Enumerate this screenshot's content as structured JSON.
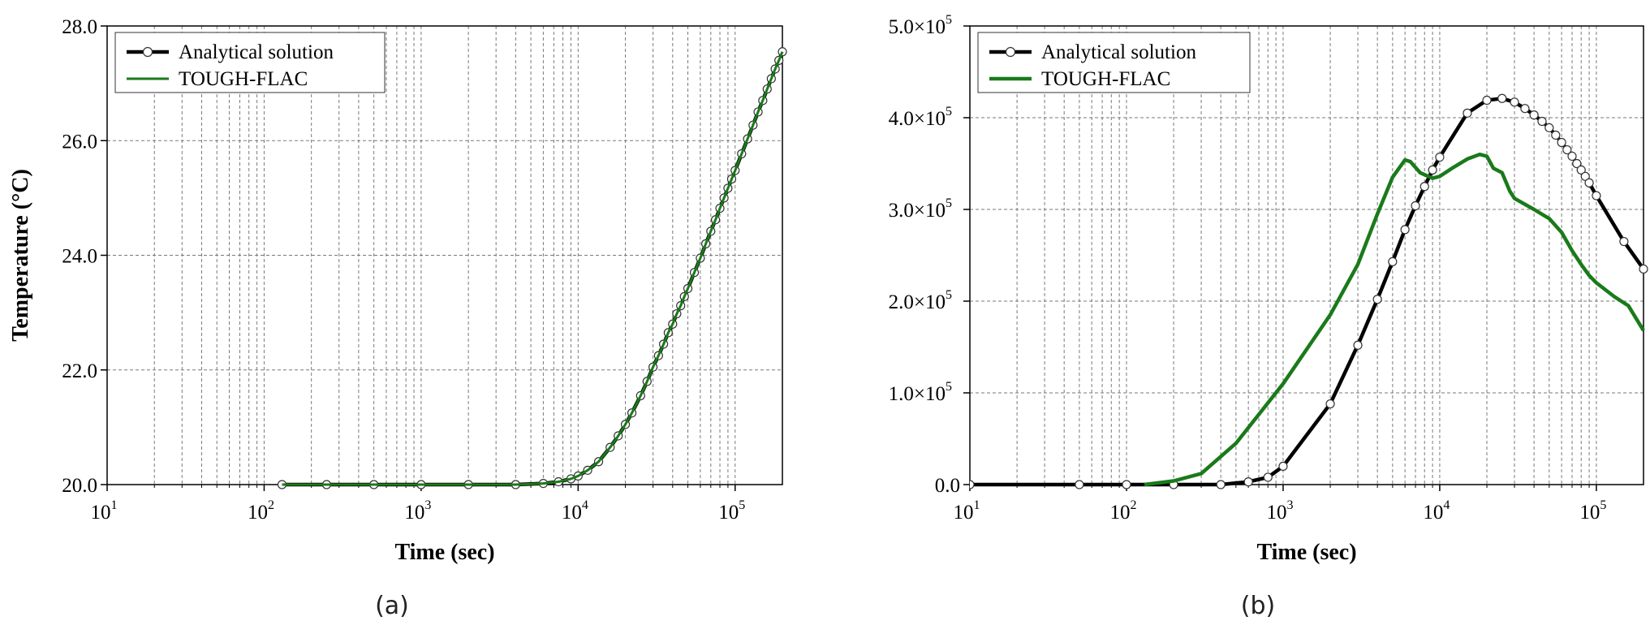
{
  "colors": {
    "analytical": "#000000",
    "tough_flac": "#1a7a1a",
    "grid": "#7a7a7a"
  },
  "chart_data": [
    {
      "type": "line",
      "panel_label": "(a)",
      "xlabel": "Time (sec)",
      "ylabel": "Temperature (°C)",
      "x_scale": "log",
      "xlim": [
        10,
        200000
      ],
      "ylim": [
        20.0,
        28.0
      ],
      "x_ticks": [
        10,
        100,
        1000,
        10000,
        100000
      ],
      "x_tick_labels": [
        {
          "base": "10",
          "exp": "1"
        },
        {
          "base": "10",
          "exp": "2"
        },
        {
          "base": "10",
          "exp": "3"
        },
        {
          "base": "10",
          "exp": "4"
        },
        {
          "base": "10",
          "exp": "5"
        }
      ],
      "y_ticks": [
        20.0,
        22.0,
        24.0,
        26.0,
        28.0
      ],
      "y_tick_labels": [
        "20.0",
        "22.0",
        "24.0",
        "26.0",
        "28.0"
      ],
      "grid": true,
      "legend_position": "top-left",
      "series": [
        {
          "name": "Analytical solution",
          "style": "line-with-open-circles",
          "x": [
            130,
            250,
            500,
            1000,
            2000,
            4000,
            6000,
            7500,
            9000,
            10000,
            11500,
            13500,
            16000,
            18000,
            20000,
            22000,
            25000,
            27500,
            30000,
            32500,
            35000,
            37500,
            40000,
            42500,
            45000,
            47500,
            50000,
            55000,
            60000,
            65000,
            70000,
            75000,
            80000,
            85000,
            90000,
            95000,
            100000,
            110000,
            120000,
            130000,
            140000,
            150000,
            160000,
            170000,
            180000,
            190000,
            200000
          ],
          "y": [
            20.0,
            20.0,
            20.0,
            20.0,
            20.0,
            20.0,
            20.02,
            20.05,
            20.1,
            20.15,
            20.25,
            20.4,
            20.65,
            20.85,
            21.05,
            21.25,
            21.55,
            21.8,
            22.05,
            22.25,
            22.45,
            22.65,
            22.8,
            22.98,
            23.12,
            23.28,
            23.42,
            23.7,
            23.95,
            24.2,
            24.42,
            24.62,
            24.82,
            25.0,
            25.17,
            25.33,
            25.48,
            25.77,
            26.03,
            26.27,
            26.5,
            26.7,
            26.9,
            27.08,
            27.25,
            27.4,
            27.55
          ]
        },
        {
          "name": "TOUGH-FLAC",
          "style": "line",
          "x": [
            130,
            250,
            500,
            1000,
            2000,
            4000,
            6000,
            7500,
            9000,
            10000,
            11500,
            13500,
            16000,
            18000,
            20000,
            22000,
            25000,
            27500,
            30000,
            32500,
            35000,
            37500,
            40000,
            42500,
            45000,
            47500,
            50000,
            55000,
            60000,
            65000,
            70000,
            75000,
            80000,
            85000,
            90000,
            95000,
            100000,
            110000,
            120000,
            130000,
            140000,
            150000,
            160000,
            170000,
            180000,
            190000,
            200000
          ],
          "y": [
            20.0,
            20.0,
            20.0,
            20.0,
            20.0,
            20.0,
            20.02,
            20.05,
            20.1,
            20.15,
            20.25,
            20.4,
            20.65,
            20.85,
            21.05,
            21.25,
            21.55,
            21.8,
            22.05,
            22.25,
            22.45,
            22.65,
            22.8,
            22.98,
            23.12,
            23.28,
            23.42,
            23.7,
            23.95,
            24.2,
            24.42,
            24.62,
            24.82,
            25.0,
            25.17,
            25.33,
            25.48,
            25.77,
            26.03,
            26.27,
            26.5,
            26.7,
            26.9,
            27.08,
            27.25,
            27.4,
            27.55
          ]
        }
      ]
    },
    {
      "type": "line",
      "panel_label": "(b)",
      "xlabel": "Time (sec)",
      "ylabel": "",
      "x_scale": "log",
      "xlim": [
        10,
        200000
      ],
      "ylim": [
        0,
        500000
      ],
      "x_ticks": [
        10,
        100,
        1000,
        10000,
        100000
      ],
      "x_tick_labels": [
        {
          "base": "10",
          "exp": "1"
        },
        {
          "base": "10",
          "exp": "2"
        },
        {
          "base": "10",
          "exp": "3"
        },
        {
          "base": "10",
          "exp": "4"
        },
        {
          "base": "10",
          "exp": "5"
        }
      ],
      "y_ticks": [
        0,
        100000,
        200000,
        300000,
        400000,
        500000
      ],
      "y_tick_labels": [
        {
          "text": "0.0",
          "exp": ""
        },
        {
          "text": "1.0×10",
          "exp": "5"
        },
        {
          "text": "2.0×10",
          "exp": "5"
        },
        {
          "text": "3.0×10",
          "exp": "5"
        },
        {
          "text": "4.0×10",
          "exp": "5"
        },
        {
          "text": "5.0×10",
          "exp": "5"
        }
      ],
      "grid": true,
      "legend_position": "top-left",
      "series": [
        {
          "name": "Analytical solution",
          "style": "line-with-open-circles",
          "x": [
            10,
            50,
            100,
            200,
            400,
            600,
            800,
            1000,
            2000,
            3000,
            4000,
            5000,
            6000,
            7000,
            8000,
            9000,
            10000,
            15000,
            20000,
            25000,
            30000,
            35000,
            40000,
            45000,
            50000,
            55000,
            60000,
            65000,
            70000,
            75000,
            80000,
            85000,
            90000,
            100000,
            150000,
            200000
          ],
          "y": [
            0,
            0,
            0,
            0,
            0,
            3000,
            8000,
            20000,
            88000,
            152000,
            202000,
            243000,
            278000,
            304000,
            325000,
            343000,
            357000,
            405000,
            419000,
            421000,
            417000,
            410000,
            403000,
            396000,
            389000,
            381000,
            373000,
            365000,
            358000,
            350000,
            343000,
            336000,
            329000,
            315000,
            265000,
            235000
          ]
        },
        {
          "name": "TOUGH-FLAC",
          "style": "line",
          "x": [
            130,
            200,
            300,
            500,
            1000,
            2000,
            3000,
            4000,
            5000,
            6000,
            6500,
            7500,
            9000,
            10000,
            12000,
            15000,
            18000,
            20000,
            22000,
            25000,
            28000,
            30000,
            40000,
            50000,
            60000,
            70000,
            80000,
            90000,
            100000,
            130000,
            160000,
            200000
          ],
          "y": [
            0,
            4000,
            12000,
            45000,
            110000,
            185000,
            240000,
            295000,
            335000,
            354000,
            352000,
            340000,
            334000,
            336000,
            345000,
            355000,
            360000,
            358000,
            345000,
            340000,
            320000,
            312000,
            300000,
            290000,
            275000,
            255000,
            240000,
            228000,
            220000,
            205000,
            195000,
            168000
          ]
        }
      ]
    }
  ]
}
